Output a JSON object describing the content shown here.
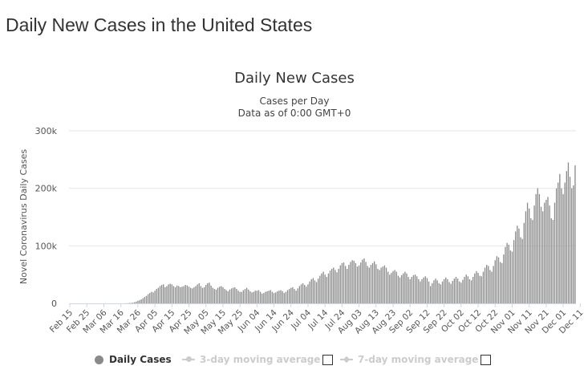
{
  "page": {
    "heading": "Daily New Cases in the United States"
  },
  "chart_data": {
    "type": "bar",
    "title": "Daily New Cases",
    "subtitle_lines": [
      "Cases per Day",
      "Data as of 0:00 GMT+0"
    ],
    "xlabel": "",
    "ylabel": "Novel Coronavirus Daily Cases",
    "ylim": [
      0,
      300000
    ],
    "yticks": [
      0,
      100000,
      200000,
      300000
    ],
    "ytick_labels": [
      "0",
      "100k",
      "200k",
      "300k"
    ],
    "grid": true,
    "legend_position": "bottom",
    "colors": {
      "bar": "#8a8a8a",
      "grid": "#e6e6e6",
      "axis": "#ccd6eb",
      "inactive": "#cccccc"
    },
    "x_tick_labels": [
      "Feb 15",
      "Feb 25",
      "Mar 06",
      "Mar 16",
      "Mar 26",
      "Apr 05",
      "Apr 15",
      "Apr 25",
      "May 05",
      "May 15",
      "May 25",
      "Jun 04",
      "Jun 14",
      "Jun 24",
      "Jul 04",
      "Jul 14",
      "Jul 24",
      "Aug 03",
      "Aug 13",
      "Aug 23",
      "Sep 02",
      "Sep 12",
      "Sep 22",
      "Oct 02",
      "Oct 12",
      "Oct 22",
      "Nov 01",
      "Nov 11",
      "Nov 21",
      "Dec 01",
      "Dec 11"
    ],
    "x_start_label": "Feb 15",
    "series": [
      {
        "name": "Daily Cases",
        "values": [
          0,
          0,
          0,
          0,
          0,
          0,
          0,
          0,
          0,
          0,
          0,
          0,
          0,
          0,
          0,
          0,
          0,
          0,
          0,
          0,
          0,
          0,
          0,
          0,
          0,
          0,
          0,
          0,
          10,
          20,
          30,
          50,
          100,
          200,
          300,
          600,
          800,
          1200,
          2000,
          3000,
          4500,
          5500,
          7000,
          9000,
          11000,
          13000,
          16000,
          18000,
          20000,
          19000,
          22000,
          25000,
          27000,
          30000,
          32000,
          33000,
          28000,
          30000,
          33000,
          34000,
          33000,
          30000,
          28000,
          31000,
          30000,
          28000,
          29000,
          30000,
          32000,
          31000,
          29000,
          27000,
          26000,
          28000,
          30000,
          33000,
          35000,
          30000,
          27000,
          28000,
          32000,
          35000,
          36000,
          31000,
          27000,
          25000,
          24000,
          27000,
          29000,
          30000,
          28000,
          25000,
          23000,
          21000,
          24000,
          26000,
          27000,
          28000,
          25000,
          22000,
          20000,
          20000,
          23000,
          25000,
          27000,
          24000,
          21000,
          19000,
          20000,
          22000,
          22000,
          23000,
          20000,
          17000,
          18000,
          20000,
          21000,
          22000,
          23000,
          20000,
          18000,
          19000,
          21000,
          22000,
          23000,
          21000,
          18000,
          20000,
          23000,
          25000,
          27000,
          28000,
          25000,
          22000,
          26000,
          30000,
          33000,
          35000,
          32000,
          29000,
          33000,
          38000,
          42000,
          44000,
          40000,
          37000,
          43000,
          48000,
          52000,
          55000,
          50000,
          46000,
          52000,
          57000,
          60000,
          62000,
          58000,
          54000,
          60000,
          66000,
          70000,
          71000,
          65000,
          60000,
          67000,
          72000,
          75000,
          74000,
          70000,
          64000,
          66000,
          71000,
          76000,
          78000,
          72000,
          65000,
          62000,
          67000,
          70000,
          73000,
          68000,
          60000,
          58000,
          62000,
          64000,
          66000,
          62000,
          55000,
          50000,
          53000,
          56000,
          58000,
          55000,
          48000,
          45000,
          49000,
          52000,
          55000,
          52000,
          46000,
          42000,
          46000,
          49000,
          50000,
          47000,
          42000,
          38000,
          42000,
          45000,
          47000,
          44000,
          38000,
          30000,
          35000,
          40000,
          43000,
          40000,
          35000,
          33000,
          38000,
          42000,
          45000,
          42000,
          37000,
          34000,
          39000,
          43000,
          46000,
          43000,
          38000,
          36000,
          41000,
          46000,
          50000,
          47000,
          42000,
          40000,
          46000,
          52000,
          56000,
          53000,
          48000,
          47000,
          55000,
          62000,
          67000,
          65000,
          58000,
          55000,
          65000,
          75000,
          82000,
          80000,
          72000,
          70000,
          85000,
          98000,
          105000,
          102000,
          92000,
          90000,
          110000,
          125000,
          135000,
          130000,
          115000,
          112000,
          140000,
          160000,
          175000,
          165000,
          148000,
          145000,
          170000,
          190000,
          200000,
          190000,
          168000,
          160000,
          175000,
          180000,
          185000,
          170000,
          148000,
          145000,
          175000,
          200000,
          210000,
          225000,
          200000,
          190000,
          210000,
          230000,
          245000,
          220000,
          200000,
          205000,
          240000
        ]
      }
    ]
  },
  "legend": {
    "items": [
      {
        "label": "Daily Cases"
      },
      {
        "label": "3-day moving average"
      },
      {
        "label": "7-day moving average"
      }
    ]
  }
}
